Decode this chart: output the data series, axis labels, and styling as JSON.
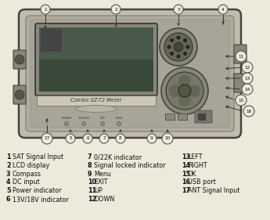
{
  "bg_color": "#ede9db",
  "title": "",
  "device_label": "Combo SZ-T2 Meter",
  "legend_col1": [
    [
      "1",
      "SAT Signal Input"
    ],
    [
      "2",
      "LCD display"
    ],
    [
      "3",
      "Compass"
    ],
    [
      "4",
      "DC input"
    ],
    [
      "5",
      "Power indicator"
    ],
    [
      "6",
      "13V/18V indicator"
    ]
  ],
  "legend_col2": [
    [
      "7",
      "0/22K indicator"
    ],
    [
      "8",
      "Signal locked indicator"
    ],
    [
      "9",
      "Menu"
    ],
    [
      "10",
      "EXIT"
    ],
    [
      "11",
      "UP"
    ],
    [
      "12",
      "DOWN"
    ]
  ],
  "legend_col3": [
    [
      "13",
      "LEFT"
    ],
    [
      "14",
      "RIGHT"
    ],
    [
      "15",
      "OK"
    ],
    [
      "16",
      "USB port"
    ],
    [
      "17",
      "ANT Signal Input"
    ]
  ],
  "device_color": "#b8b4a4",
  "device_edge": "#555555",
  "screen_color": "#6e7e6e",
  "screen_dark": "#3a4a3a",
  "indicator_labels": [
    "POWER",
    "13V/18V",
    "22K",
    "LOCK"
  ],
  "circle_labels": [
    [
      "1",
      58,
      12
    ],
    [
      "2",
      148,
      12
    ],
    [
      "3",
      228,
      12
    ],
    [
      "4",
      285,
      12
    ],
    [
      "5",
      90,
      177
    ],
    [
      "6",
      112,
      177
    ],
    [
      "7",
      133,
      177
    ],
    [
      "8",
      154,
      177
    ],
    [
      "9",
      194,
      177
    ],
    [
      "10",
      214,
      177
    ],
    [
      "11",
      308,
      72
    ],
    [
      "12",
      316,
      86
    ],
    [
      "13",
      316,
      100
    ],
    [
      "14",
      316,
      114
    ],
    [
      "15",
      308,
      128
    ],
    [
      "16",
      318,
      142
    ],
    [
      "17",
      60,
      177
    ]
  ]
}
